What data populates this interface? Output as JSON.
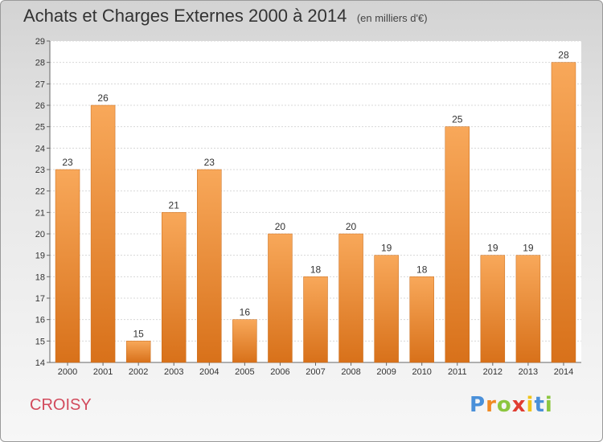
{
  "chart_data": {
    "type": "bar",
    "title": "Achats et Charges Externes 2000 à 2014",
    "subtitle": "(en milliers d'€)",
    "categories": [
      "2000",
      "2001",
      "2002",
      "2003",
      "2004",
      "2005",
      "2006",
      "2007",
      "2008",
      "2009",
      "2010",
      "2011",
      "2012",
      "2013",
      "2014"
    ],
    "values": [
      23,
      26,
      15,
      21,
      23,
      16,
      20,
      18,
      20,
      19,
      18,
      25,
      19,
      19,
      28
    ],
    "ylim": [
      14,
      29
    ],
    "yticks": [
      "14",
      "15",
      "16",
      "17",
      "18",
      "19",
      "20",
      "21",
      "22",
      "23",
      "24",
      "25",
      "26",
      "27",
      "28",
      "29"
    ],
    "grid": true,
    "bar_color": "#f0862a"
  },
  "footer": {
    "commune": "CROISY",
    "brand_letters": [
      "P",
      "r",
      "o",
      "x",
      "i",
      "t",
      "i"
    ],
    "brand_colors": [
      "#4a90d9",
      "#f08a24",
      "#8cc63f",
      "#e03c31",
      "#f0c419",
      "#4a90d9",
      "#8cc63f"
    ]
  }
}
